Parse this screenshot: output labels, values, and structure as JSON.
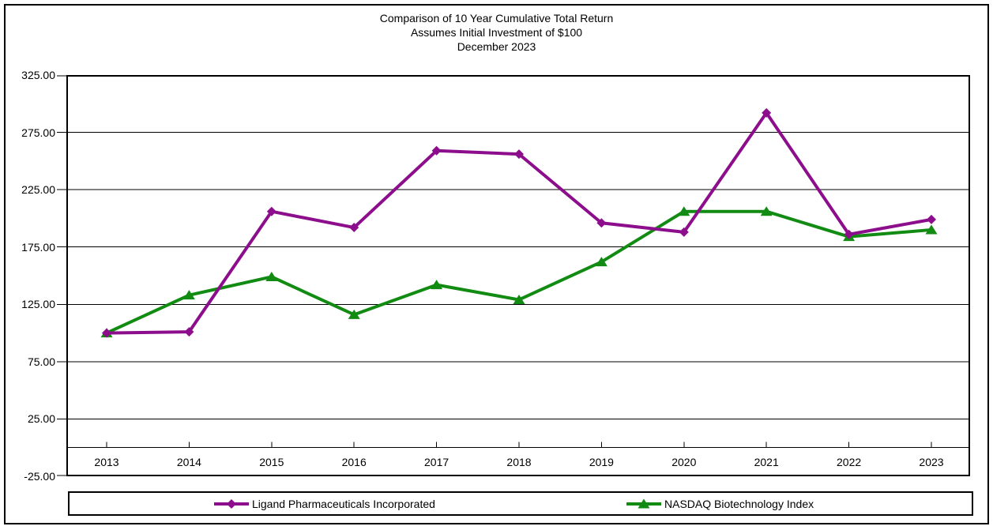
{
  "title": {
    "line1": "Comparison of 10 Year Cumulative Total Return",
    "line2": "Assumes Initial Investment of $100",
    "line3": "December 2023"
  },
  "chart_data": {
    "type": "line",
    "title": "Comparison of 10 Year Cumulative Total Return — Assumes Initial Investment of $100 — December 2023",
    "x": [
      "2013",
      "2014",
      "2015",
      "2016",
      "2017",
      "2018",
      "2019",
      "2020",
      "2021",
      "2022",
      "2023"
    ],
    "series": [
      {
        "name": "Ligand Pharmaceuticals Incorporated",
        "color": "#8C0E8C",
        "marker": "diamond",
        "z_index": 2,
        "values": [
          100,
          101,
          206,
          192,
          259,
          256,
          196,
          188,
          292,
          186,
          199
        ]
      },
      {
        "name": "NASDAQ Biotechnology Index",
        "color": "#128B12",
        "marker": "triangle-up",
        "z_index": 1,
        "values": [
          100,
          133,
          149,
          116,
          142,
          129,
          162,
          206,
          206,
          184,
          190
        ]
      }
    ],
    "ylim": [
      -25,
      325
    ],
    "ytick_labels": [
      "325.00",
      "275.00",
      "225.00",
      "175.00",
      "125.00",
      "75.00",
      "25.00",
      "-25.00"
    ],
    "ytick_values": [
      325,
      275,
      225,
      175,
      125,
      75,
      25,
      -25
    ],
    "gridlines": [
      275,
      225,
      175,
      125,
      75,
      25
    ],
    "zero_axis": 0,
    "grid": "horizontal",
    "legend_position": "bottom",
    "axis_color": "#000000",
    "background_color": "#FFFFFF"
  }
}
